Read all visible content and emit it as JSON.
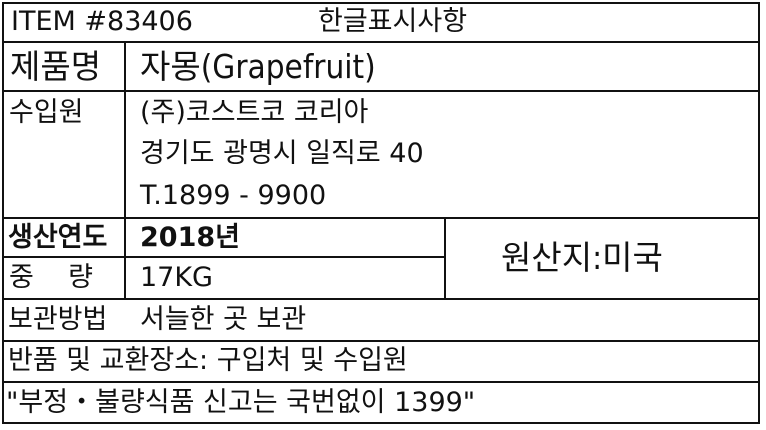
{
  "header": {
    "item": "ITEM #83406",
    "title": "한글표시사항"
  },
  "rows": {
    "product_name": {
      "label": "제품명",
      "value": "자몽(Grapefruit)"
    },
    "importer": {
      "label": "수입원",
      "lines": [
        "(주)코스트코 코리아",
        "경기도 광명시 일직로 40",
        "T.1899 - 9900"
      ]
    },
    "production_year": {
      "label": "생산연도",
      "value": "2018년"
    },
    "weight": {
      "label": "중    량",
      "value": "17KG"
    },
    "origin": {
      "value": "원산지:미국"
    },
    "storage": {
      "label": "보관방법",
      "value": "서늘한 곳 보관"
    },
    "exchange": {
      "value": "반품 및 교환장소: 구입처 및 수입원"
    },
    "report": {
      "value": "\"부정・불량식품 신고는 국번없이 1399\""
    }
  }
}
